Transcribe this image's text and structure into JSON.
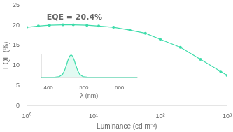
{
  "chart_data": [
    {
      "type": "line",
      "xlabel": "Luminance (cd m⁻²)",
      "ylabel": "EQE (%)",
      "x": [
        1.0,
        1.5,
        2.2,
        3.5,
        5.0,
        8.0,
        12.0,
        20.0,
        35.0,
        60.0,
        100.0,
        200.0,
        400.0,
        800.0,
        1000.0
      ],
      "values": [
        19.5,
        19.8,
        20.0,
        20.1,
        20.1,
        20.0,
        19.8,
        19.5,
        18.8,
        18.0,
        16.5,
        14.5,
        11.5,
        8.5,
        7.5
      ],
      "color": "#3ddcaa",
      "marker": "circle",
      "log": "x",
      "xlim": [
        1,
        1000
      ],
      "xticks": [
        {
          "value": 1,
          "label": "10⁰"
        },
        {
          "value": 10,
          "label": "10¹"
        },
        {
          "value": 100,
          "label": "10²"
        },
        {
          "value": 1000,
          "label": "10³"
        }
      ],
      "ylim": [
        0,
        25
      ],
      "yticks": [
        0,
        5,
        10,
        15,
        20,
        25
      ],
      "grid": false,
      "annotation": "EQE = 20.4%"
    },
    {
      "type": "area",
      "xlabel": "λ (nm)",
      "x": [
        380,
        400,
        420,
        430,
        440,
        445,
        450,
        455,
        460,
        464,
        468,
        473,
        478,
        483,
        488,
        498,
        508,
        528,
        560,
        600,
        650
      ],
      "values": [
        0,
        0,
        0.001,
        0.0168,
        0.1304,
        0.279,
        0.5,
        0.751,
        0.945,
        1,
        0.945,
        0.751,
        0.5,
        0.279,
        0.1304,
        0.0168,
        0.001,
        0,
        0,
        0,
        0
      ],
      "color": "#3ddcaa",
      "xlim": [
        380,
        650
      ],
      "xticks": [
        400,
        500,
        600
      ],
      "ylim": [
        0,
        1.05
      ],
      "grid": false,
      "tick_labels": "x"
    }
  ]
}
